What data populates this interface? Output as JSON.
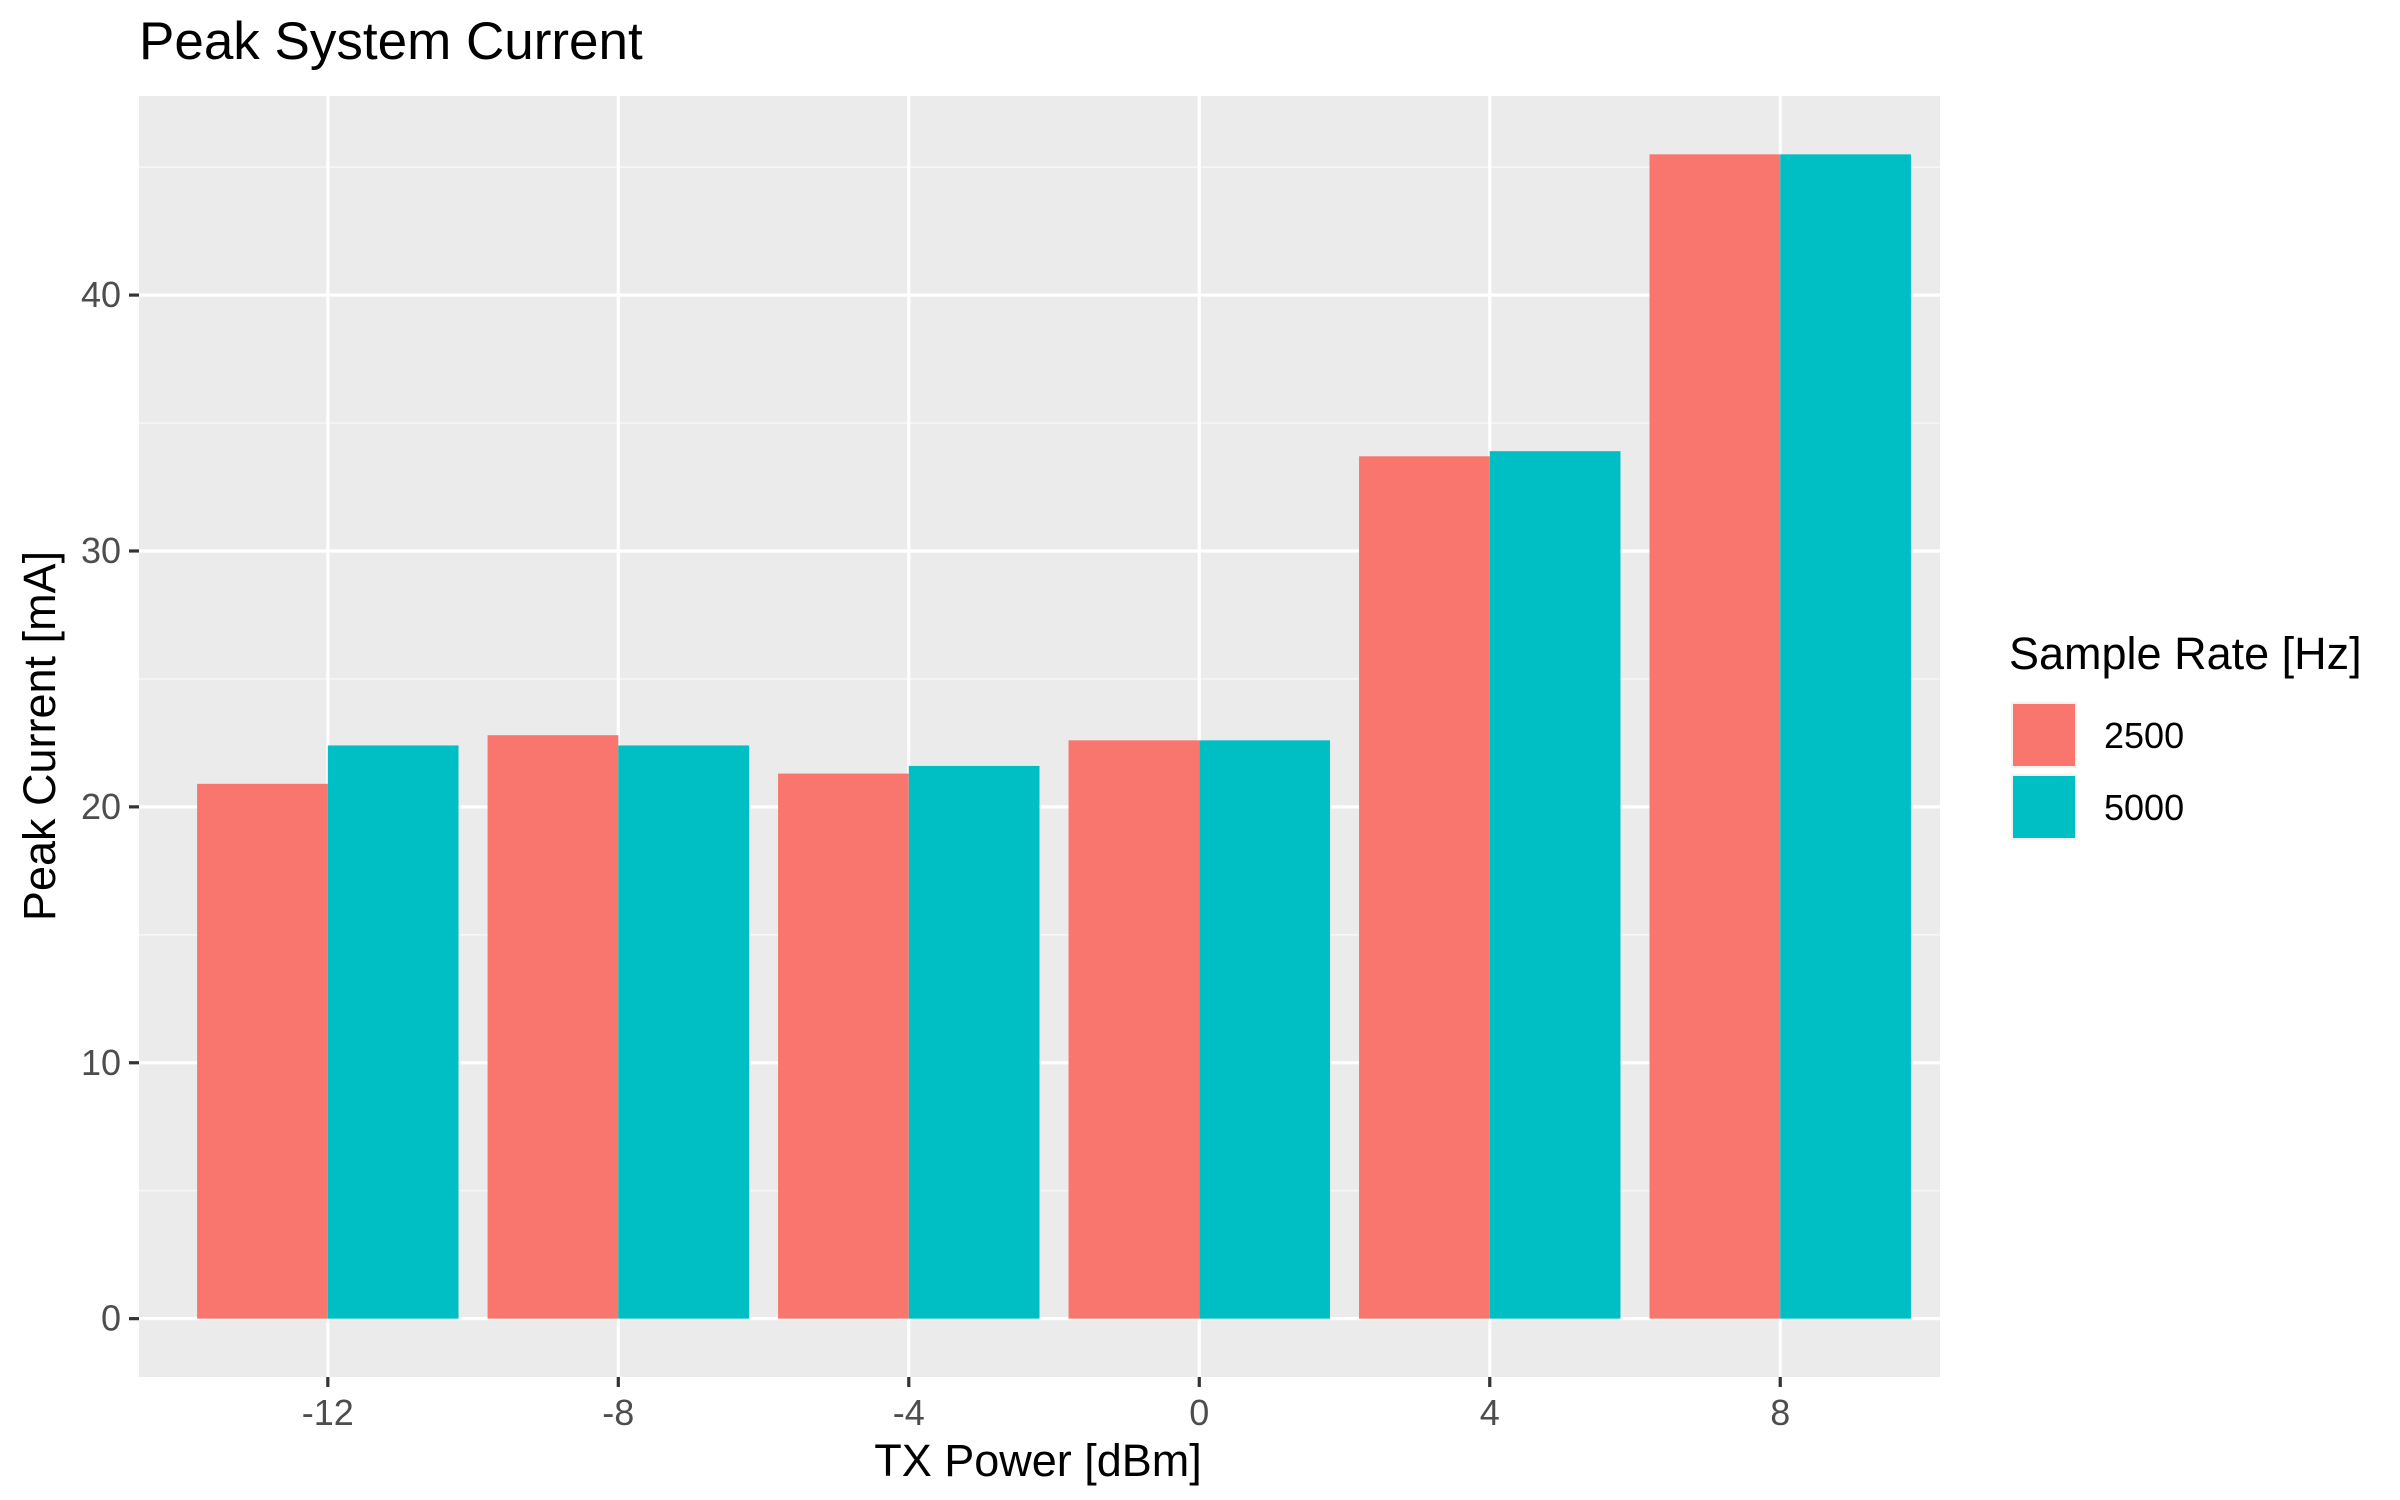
{
  "chart_data": {
    "type": "bar",
    "title": "Peak System Current",
    "xlabel": "TX Power [dBm]",
    "ylabel": "Peak Current [mA]",
    "categories": [
      "-12",
      "-8",
      "-4",
      "0",
      "4",
      "8"
    ],
    "x_values": [
      -12,
      -8,
      -4,
      0,
      4,
      8
    ],
    "xlim": [
      -14.6,
      10.2
    ],
    "ylim": [
      -2.28,
      47.78
    ],
    "yticks": [
      0,
      10,
      20,
      30,
      40
    ],
    "ytick_labels": [
      "0",
      "10",
      "20",
      "30",
      "40"
    ],
    "grid": true,
    "legend": {
      "title": "Sample Rate [Hz]",
      "position": "right"
    },
    "series": [
      {
        "name": "2500",
        "color": "#F8766D",
        "values": [
          20.9,
          22.8,
          21.3,
          22.6,
          33.7,
          45.5
        ]
      },
      {
        "name": "5000",
        "color": "#00BFC4",
        "values": [
          22.4,
          22.4,
          21.6,
          22.6,
          33.9,
          45.5
        ]
      }
    ]
  },
  "colors": {
    "panel_background": "#EBEBEB",
    "grid_major": "#FFFFFF",
    "grid_minor": "#F5F5F5",
    "tick_text": "#4D4D4D",
    "axis_tick": "#333333"
  }
}
